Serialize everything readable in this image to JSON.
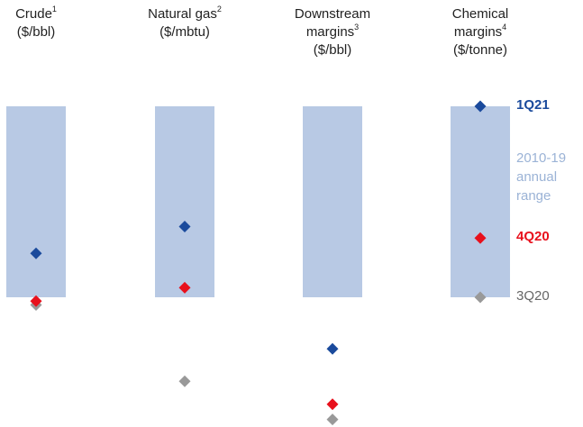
{
  "chart_data": {
    "type": "range-marker",
    "columns": [
      {
        "name": "Crude",
        "footnote": "1",
        "unit": "($/bbl)",
        "points": {
          "1Q21": 0.23,
          "4Q20": -0.02,
          "3Q20": -0.04
        }
      },
      {
        "name": "Natural gas",
        "footnote": "2",
        "unit": "($/mbtu)",
        "points": {
          "1Q21": 0.37,
          "4Q20": 0.05,
          "3Q20": -0.44
        }
      },
      {
        "name": "Downstream\nmargins",
        "footnote": "3",
        "unit": "($/bbl)",
        "points": {
          "1Q21": -0.27,
          "4Q20": -0.56,
          "3Q20": -0.64
        }
      },
      {
        "name": "Chemical\nmargins",
        "footnote": "4",
        "unit": "($/tonne)",
        "points": {
          "1Q21": 1.0,
          "4Q20": 0.31,
          "3Q20": 0.0
        }
      }
    ],
    "range_label": "2010-19\nannual\nrange",
    "series": [
      {
        "name": "1Q21",
        "color": "#1a4a9c"
      },
      {
        "name": "4Q20",
        "color": "#e8101c"
      },
      {
        "name": "3Q20",
        "color": "#999999"
      }
    ],
    "range_color": "#b8c9e4"
  }
}
